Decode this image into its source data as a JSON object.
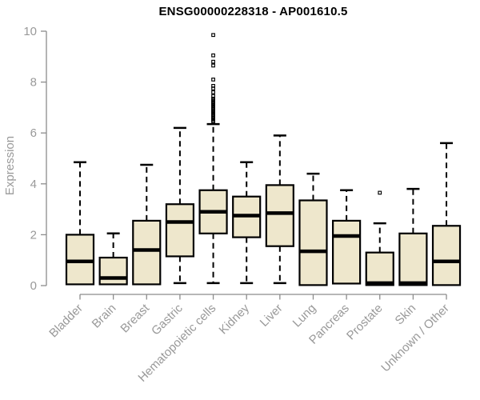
{
  "chart_data": {
    "type": "boxplot",
    "title": "ENSG00000228318 - AP001610.5",
    "ylabel": "Expression",
    "xlabel": "",
    "ylim": [
      0,
      10
    ],
    "yticks": [
      0,
      2,
      4,
      6,
      8,
      10
    ],
    "grid": false,
    "legend": "none",
    "categories": [
      "Bladder",
      "Brain",
      "Breast",
      "Gastric",
      "Hematopoietic cells",
      "Kidney",
      "Liver",
      "Lung",
      "Pancreas",
      "Prostate",
      "Skin",
      "Unknown / Other"
    ],
    "boxes": [
      {
        "category": "Bladder",
        "whisker_low": 0.05,
        "q1": 0.05,
        "median": 0.95,
        "q3": 2.0,
        "whisker_high": 4.85,
        "outliers": []
      },
      {
        "category": "Brain",
        "whisker_low": 0.05,
        "q1": 0.05,
        "median": 0.3,
        "q3": 1.1,
        "whisker_high": 2.05,
        "outliers": []
      },
      {
        "category": "Breast",
        "whisker_low": 0.05,
        "q1": 0.05,
        "median": 1.4,
        "q3": 2.55,
        "whisker_high": 4.75,
        "outliers": []
      },
      {
        "category": "Gastric",
        "whisker_low": 0.1,
        "q1": 1.15,
        "median": 2.5,
        "q3": 3.2,
        "whisker_high": 6.2,
        "outliers": []
      },
      {
        "category": "Hematopoietic cells",
        "whisker_low": 0.1,
        "q1": 2.05,
        "median": 2.9,
        "q3": 3.75,
        "whisker_high": 6.35,
        "outliers": [
          6.45,
          6.5,
          6.55,
          6.6,
          6.65,
          6.7,
          6.75,
          6.8,
          6.85,
          6.9,
          6.95,
          7.0,
          7.05,
          7.1,
          7.15,
          7.2,
          7.25,
          7.3,
          7.35,
          7.45,
          7.6,
          7.75,
          7.85,
          8.1,
          8.65,
          8.8,
          9.05,
          9.85
        ]
      },
      {
        "category": "Kidney",
        "whisker_low": 0.1,
        "q1": 1.9,
        "median": 2.75,
        "q3": 3.5,
        "whisker_high": 4.85,
        "outliers": []
      },
      {
        "category": "Liver",
        "whisker_low": 0.1,
        "q1": 1.55,
        "median": 2.85,
        "q3": 3.95,
        "whisker_high": 5.9,
        "outliers": []
      },
      {
        "category": "Lung",
        "whisker_low": 0.02,
        "q1": 0.02,
        "median": 1.35,
        "q3": 3.35,
        "whisker_high": 4.4,
        "outliers": []
      },
      {
        "category": "Pancreas",
        "whisker_low": 0.08,
        "q1": 0.08,
        "median": 1.95,
        "q3": 2.55,
        "whisker_high": 3.75,
        "outliers": []
      },
      {
        "category": "Prostate",
        "whisker_low": 0.02,
        "q1": 0.02,
        "median": 0.1,
        "q3": 1.3,
        "whisker_high": 2.45,
        "outliers": [
          3.65
        ]
      },
      {
        "category": "Skin",
        "whisker_low": 0.02,
        "q1": 0.02,
        "median": 0.1,
        "q3": 2.05,
        "whisker_high": 3.8,
        "outliers": []
      },
      {
        "category": "Unknown / Other",
        "whisker_low": 0.02,
        "q1": 0.02,
        "median": 0.95,
        "q3": 2.35,
        "whisker_high": 5.6,
        "outliers": []
      }
    ],
    "colors": {
      "background": "#FFFFFF",
      "box_fill": "#EEE7CC",
      "box_border": "#000000",
      "median": "#000000",
      "whisker": "#000000",
      "outlier": "#000000",
      "axis": "#8C8C8C",
      "tick_label": "#999999",
      "title": "#000000"
    }
  }
}
